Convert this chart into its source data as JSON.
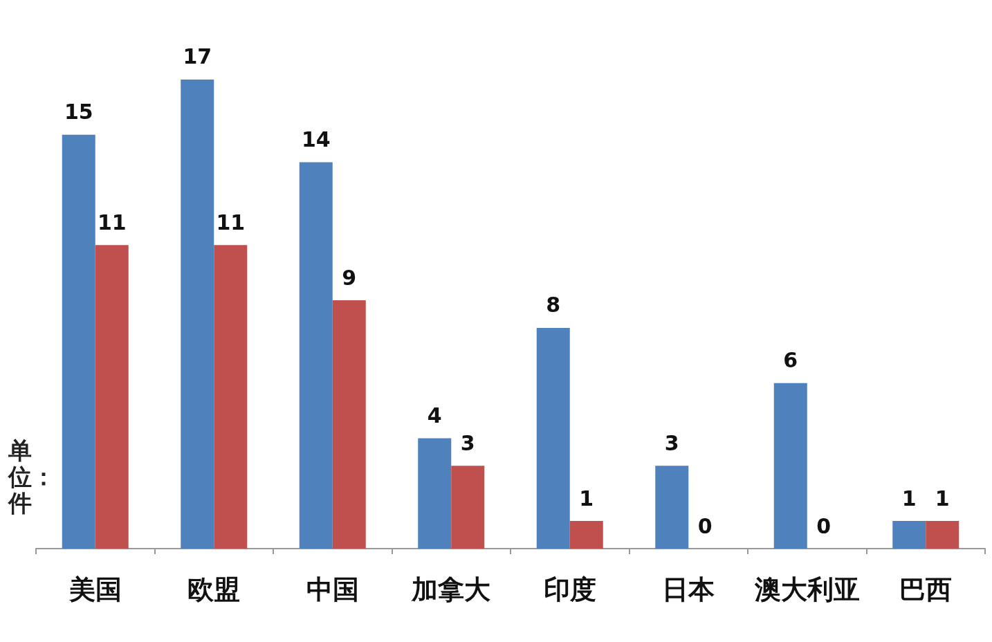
{
  "chart_data": {
    "type": "bar",
    "ylabel": "单位：件",
    "categories": [
      "美国",
      "欧盟",
      "中国",
      "加拿大",
      "印度",
      "日本",
      "澳大利亚",
      "巴西"
    ],
    "series": [
      {
        "color": "#4f81bd",
        "values": [
          15,
          17,
          14,
          4,
          8,
          3,
          6,
          1
        ]
      },
      {
        "color": "#c0504d",
        "values": [
          11,
          11,
          9,
          3,
          1,
          0,
          0,
          1
        ]
      }
    ],
    "data_labels": true
  }
}
